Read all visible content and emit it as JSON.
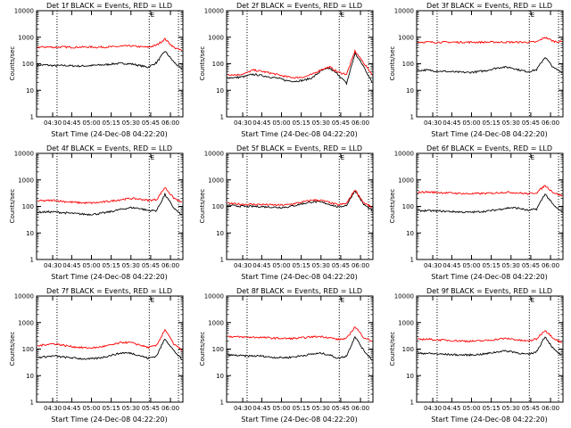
{
  "chart_data": [
    {
      "type": "line",
      "title": "Det 1f BLACK = Events, RED = LLD",
      "xlabel": "Start Time (24-Dec-08 04:22:20)",
      "ylabel": "Counts/sec",
      "yscale": "log",
      "ylim": [
        1,
        10000
      ],
      "xlim": [
        0,
        100
      ],
      "yticks": [
        "1",
        "10",
        "100",
        "1000",
        "10000"
      ],
      "xtick_labels": [
        "04:30",
        "04:45",
        "05:00",
        "05:15",
        "05:30",
        "05:45",
        "06:00"
      ],
      "xtick_positions": [
        11,
        24,
        37.5,
        51,
        64.5,
        78,
        91.5
      ],
      "vlines": [
        14,
        77,
        97
      ],
      "marker": "E",
      "series": [
        {
          "name": "Events",
          "color": "#000000",
          "values": [
            88,
            90,
            84,
            86,
            84,
            82,
            84,
            88,
            92,
            100,
            104,
            99,
            86,
            74,
            110,
            300,
            120,
            60
          ]
        },
        {
          "name": "LLD",
          "color": "#ff0000",
          "values": [
            420,
            430,
            420,
            430,
            420,
            425,
            430,
            420,
            430,
            435,
            460,
            470,
            440,
            420,
            500,
            860,
            420,
            310
          ]
        }
      ]
    },
    {
      "type": "line",
      "title": "Det 2f BLACK = Events, RED = LLD",
      "xlabel": "Start Time (24-Dec-08 04:22:20)",
      "ylabel": "Counts/sec",
      "yscale": "log",
      "ylim": [
        1,
        10000
      ],
      "xlim": [
        0,
        100
      ],
      "yticks": [
        "1",
        "10",
        "100",
        "1000",
        "10000"
      ],
      "xtick_labels": [
        "04:30",
        "04:45",
        "05:00",
        "05:15",
        "05:30",
        "05:45",
        "06:00"
      ],
      "xtick_positions": [
        11,
        24,
        37.5,
        51,
        64.5,
        78,
        91.5
      ],
      "vlines": [
        14,
        77,
        97
      ],
      "marker": "E",
      "series": [
        {
          "name": "Events",
          "color": "#000000",
          "values": [
            30,
            30,
            33,
            40,
            36,
            32,
            28,
            23,
            22,
            24,
            30,
            54,
            68,
            40,
            18,
            250,
            80,
            20
          ]
        },
        {
          "name": "LLD",
          "color": "#ff0000",
          "values": [
            40,
            38,
            42,
            58,
            52,
            45,
            38,
            32,
            30,
            32,
            40,
            60,
            76,
            48,
            40,
            300,
            110,
            40
          ]
        }
      ]
    },
    {
      "type": "line",
      "title": "Det 3f BLACK = Events, RED = LLD",
      "xlabel": "Start Time (24-Dec-08 04:22:20)",
      "ylabel": "Counts/sec",
      "yscale": "log",
      "ylim": [
        1,
        10000
      ],
      "xlim": [
        0,
        100
      ],
      "yticks": [
        "1",
        "10",
        "100",
        "1000",
        "10000"
      ],
      "xtick_labels": [
        "04:30",
        "04:45",
        "05:00",
        "05:15",
        "05:30",
        "05:45",
        "06:00"
      ],
      "xtick_positions": [
        11,
        24,
        37.5,
        51,
        64.5,
        78,
        91.5
      ],
      "vlines": [
        14,
        77,
        97
      ],
      "marker": "E",
      "series": [
        {
          "name": "Events",
          "color": "#000000",
          "values": [
            55,
            58,
            54,
            52,
            50,
            48,
            47,
            50,
            55,
            66,
            75,
            72,
            58,
            50,
            60,
            180,
            70,
            48
          ]
        },
        {
          "name": "LLD",
          "color": "#ff0000",
          "values": [
            650,
            655,
            650,
            650,
            650,
            650,
            650,
            650,
            652,
            655,
            655,
            652,
            650,
            650,
            660,
            1000,
            700,
            680
          ]
        }
      ]
    },
    {
      "type": "line",
      "title": "Det 4f BLACK = Events, RED = LLD",
      "xlabel": "Start Time (24-Dec-08 04:22:20)",
      "ylabel": "Counts/sec",
      "yscale": "log",
      "ylim": [
        1,
        10000
      ],
      "xlim": [
        0,
        100
      ],
      "yticks": [
        "1",
        "10",
        "100",
        "1000",
        "10000"
      ],
      "xtick_labels": [
        "04:30",
        "04:45",
        "05:00",
        "05:15",
        "05:30",
        "05:45",
        "06:00"
      ],
      "xtick_positions": [
        11,
        24,
        37.5,
        51,
        64.5,
        78,
        91.5
      ],
      "vlines": [
        14,
        77,
        97
      ],
      "marker": "E",
      "series": [
        {
          "name": "Events",
          "color": "#000000",
          "values": [
            60,
            62,
            62,
            58,
            55,
            52,
            50,
            52,
            58,
            68,
            80,
            90,
            85,
            70,
            70,
            280,
            90,
            45
          ]
        },
        {
          "name": "LLD",
          "color": "#ff0000",
          "values": [
            160,
            165,
            170,
            155,
            145,
            138,
            135,
            138,
            150,
            165,
            185,
            200,
            190,
            170,
            180,
            520,
            210,
            140
          ]
        }
      ]
    },
    {
      "type": "line",
      "title": "Det 5f BLACK = Events, RED = LLD",
      "xlabel": "Start Time (24-Dec-08 04:22:20)",
      "ylabel": "Counts/sec",
      "yscale": "log",
      "ylim": [
        1,
        10000
      ],
      "xlim": [
        0,
        100
      ],
      "yticks": [
        "1",
        "10",
        "100",
        "1000",
        "10000"
      ],
      "xtick_labels": [
        "04:30",
        "04:45",
        "05:00",
        "05:15",
        "05:30",
        "05:45",
        "06:00"
      ],
      "xtick_positions": [
        11,
        24,
        37.5,
        51,
        64.5,
        78,
        91.5
      ],
      "vlines": [
        14,
        77,
        97
      ],
      "marker": "E",
      "series": [
        {
          "name": "Events",
          "color": "#000000",
          "values": [
            110,
            105,
            100,
            100,
            98,
            95,
            92,
            95,
            110,
            130,
            150,
            145,
            120,
            95,
            110,
            400,
            120,
            70
          ]
        },
        {
          "name": "LLD",
          "color": "#ff0000",
          "values": [
            130,
            125,
            120,
            120,
            118,
            115,
            112,
            115,
            130,
            150,
            175,
            170,
            140,
            115,
            130,
            430,
            140,
            90
          ]
        }
      ]
    },
    {
      "type": "line",
      "title": "Det 6f BLACK = Events, RED = LLD",
      "xlabel": "Start Time (24-Dec-08 04:22:20)",
      "ylabel": "Counts/sec",
      "yscale": "log",
      "ylim": [
        1,
        10000
      ],
      "xlim": [
        0,
        100
      ],
      "yticks": [
        "1",
        "10",
        "100",
        "1000",
        "10000"
      ],
      "xtick_labels": [
        "04:30",
        "04:45",
        "05:00",
        "05:15",
        "05:30",
        "05:45",
        "06:00"
      ],
      "xtick_positions": [
        11,
        24,
        37.5,
        51,
        64.5,
        78,
        91.5
      ],
      "vlines": [
        14,
        77,
        97
      ],
      "marker": "E",
      "series": [
        {
          "name": "Events",
          "color": "#000000",
          "values": [
            68,
            70,
            68,
            66,
            64,
            62,
            60,
            62,
            66,
            72,
            82,
            90,
            85,
            70,
            80,
            300,
            110,
            60
          ]
        },
        {
          "name": "LLD",
          "color": "#ff0000",
          "values": [
            340,
            350,
            340,
            330,
            320,
            310,
            300,
            305,
            310,
            320,
            340,
            340,
            320,
            300,
            330,
            620,
            330,
            250
          ]
        }
      ]
    },
    {
      "type": "line",
      "title": "Det 7f BLACK = Events, RED = LLD",
      "xlabel": "Start Time (24-Dec-08 04:22:20)",
      "ylabel": "Counts/sec",
      "yscale": "log",
      "ylim": [
        1,
        10000
      ],
      "xlim": [
        0,
        100
      ],
      "yticks": [
        "1",
        "10",
        "100",
        "1000",
        "10000"
      ],
      "xtick_labels": [
        "04:30",
        "04:45",
        "05:00",
        "05:15",
        "05:30",
        "05:45",
        "06:00"
      ],
      "xtick_positions": [
        11,
        24,
        37.5,
        51,
        64.5,
        78,
        91.5
      ],
      "vlines": [
        14,
        77,
        97
      ],
      "marker": "E",
      "series": [
        {
          "name": "Events",
          "color": "#000000",
          "values": [
            48,
            52,
            55,
            50,
            47,
            44,
            42,
            45,
            52,
            62,
            72,
            70,
            58,
            45,
            55,
            250,
            90,
            40
          ]
        },
        {
          "name": "LLD",
          "color": "#ff0000",
          "values": [
            130,
            150,
            160,
            140,
            125,
            115,
            110,
            115,
            130,
            150,
            180,
            175,
            145,
            115,
            135,
            550,
            160,
            90
          ]
        }
      ]
    },
    {
      "type": "line",
      "title": "Det 8f BLACK = Events, RED = LLD",
      "xlabel": "Start Time (24-Dec-08 04:22:20)",
      "ylabel": "Counts/sec",
      "yscale": "log",
      "ylim": [
        1,
        10000
      ],
      "xlim": [
        0,
        100
      ],
      "yticks": [
        "1",
        "10",
        "100",
        "1000",
        "10000"
      ],
      "xtick_labels": [
        "04:30",
        "04:45",
        "05:00",
        "05:15",
        "05:30",
        "05:45",
        "06:00"
      ],
      "xtick_positions": [
        11,
        24,
        37.5,
        51,
        64.5,
        78,
        91.5
      ],
      "vlines": [
        14,
        77,
        97
      ],
      "marker": "E",
      "series": [
        {
          "name": "Events",
          "color": "#000000",
          "values": [
            60,
            58,
            55,
            55,
            55,
            50,
            48,
            48,
            52,
            58,
            65,
            70,
            60,
            45,
            55,
            300,
            90,
            40
          ]
        },
        {
          "name": "LLD",
          "color": "#ff0000",
          "values": [
            300,
            290,
            280,
            280,
            275,
            265,
            255,
            250,
            255,
            270,
            290,
            300,
            270,
            230,
            250,
            700,
            280,
            200
          ]
        }
      ]
    },
    {
      "type": "line",
      "title": "Det 9f BLACK = Events, RED = LLD",
      "xlabel": "Start Time (24-Dec-08 04:22:20)",
      "ylabel": "Counts/sec",
      "yscale": "log",
      "ylim": [
        1,
        10000
      ],
      "xlim": [
        0,
        100
      ],
      "yticks": [
        "1",
        "10",
        "100",
        "1000",
        "10000"
      ],
      "xtick_labels": [
        "04:30",
        "04:45",
        "05:00",
        "05:15",
        "05:30",
        "05:45",
        "06:00"
      ],
      "xtick_positions": [
        11,
        24,
        37.5,
        51,
        64.5,
        78,
        91.5
      ],
      "vlines": [
        14,
        77,
        97
      ],
      "marker": "E",
      "series": [
        {
          "name": "Events",
          "color": "#000000",
          "values": [
            68,
            70,
            66,
            64,
            62,
            60,
            60,
            62,
            66,
            75,
            85,
            82,
            70,
            62,
            80,
            300,
            100,
            55
          ]
        },
        {
          "name": "LLD",
          "color": "#ff0000",
          "values": [
            230,
            240,
            225,
            220,
            210,
            205,
            200,
            200,
            210,
            225,
            250,
            245,
            215,
            200,
            240,
            520,
            260,
            170
          ]
        }
      ]
    }
  ]
}
